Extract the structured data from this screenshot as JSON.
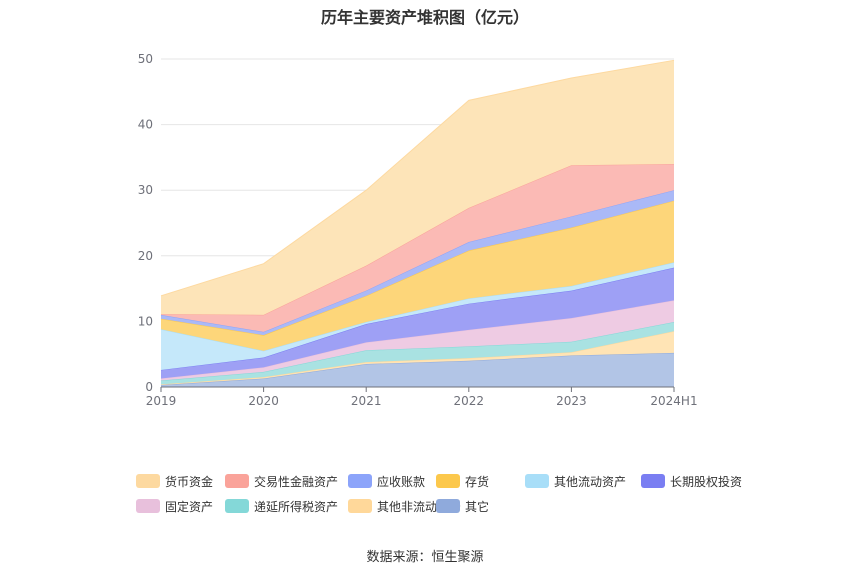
{
  "chart_data": {
    "type": "area",
    "stacked": true,
    "title": "历年主要资产堆积图（亿元）",
    "source": "数据来源：恒生聚源",
    "categories": [
      "2019",
      "2020",
      "2021",
      "2022",
      "2023",
      "2024H1"
    ],
    "ylim": [
      0,
      50
    ],
    "yticks": [
      "0",
      "10",
      "20",
      "30",
      "40",
      "50"
    ],
    "grid": true,
    "legend_position": "bottom",
    "series": [
      {
        "name": "其它",
        "color": "#8faadc",
        "fill": "#b2c5e6",
        "values": [
          0.3,
          1.3,
          3.5,
          4.0,
          4.8,
          5.2
        ]
      },
      {
        "name": "其他非流动资产",
        "color": "#ffd89a",
        "fill": "#ffe4b5",
        "values": [
          0.1,
          0.2,
          0.3,
          0.4,
          0.5,
          3.3
        ]
      },
      {
        "name": "递延所得税资产",
        "color": "#84d8d8",
        "fill": "#a9e2e2",
        "values": [
          0.6,
          0.8,
          1.8,
          1.8,
          1.6,
          1.4
        ]
      },
      {
        "name": "固定资产",
        "color": "#e8c0dc",
        "fill": "#eecbe3",
        "values": [
          0.3,
          0.7,
          1.2,
          2.5,
          3.6,
          3.3
        ]
      },
      {
        "name": "长期股权投资",
        "color": "#7a7ef2",
        "fill": "#9ea0f5",
        "values": [
          1.3,
          1.5,
          2.8,
          4.0,
          4.2,
          5.0
        ]
      },
      {
        "name": "其他流动资产",
        "color": "#a8def8",
        "fill": "#c5e8fa",
        "values": [
          6.2,
          1.0,
          0.3,
          0.8,
          0.7,
          0.8
        ]
      },
      {
        "name": "存货",
        "color": "#fcc84c",
        "fill": "#fdd67a",
        "values": [
          1.6,
          2.4,
          4.0,
          7.3,
          8.9,
          9.4
        ]
      },
      {
        "name": "应收账款",
        "color": "#8ca4fa",
        "fill": "#aab9f7",
        "values": [
          0.6,
          0.5,
          0.8,
          1.3,
          1.7,
          1.6
        ]
      },
      {
        "name": "交易性金融资产",
        "color": "#faa39a",
        "fill": "#fbbab5",
        "values": [
          0.1,
          2.6,
          3.8,
          5.2,
          7.8,
          4.0
        ]
      },
      {
        "name": "货币资金",
        "color": "#fdd9a0",
        "fill": "#fde4b8",
        "values": [
          2.8,
          7.8,
          11.5,
          16.4,
          13.3,
          15.8
        ]
      }
    ],
    "legend_order": [
      "货币资金",
      "交易性金融资产",
      "应收账款",
      "存货",
      "其他流动资产",
      "长期股权投资",
      "固定资产",
      "递延所得税资产",
      "其他非流动资产",
      "其它"
    ]
  }
}
